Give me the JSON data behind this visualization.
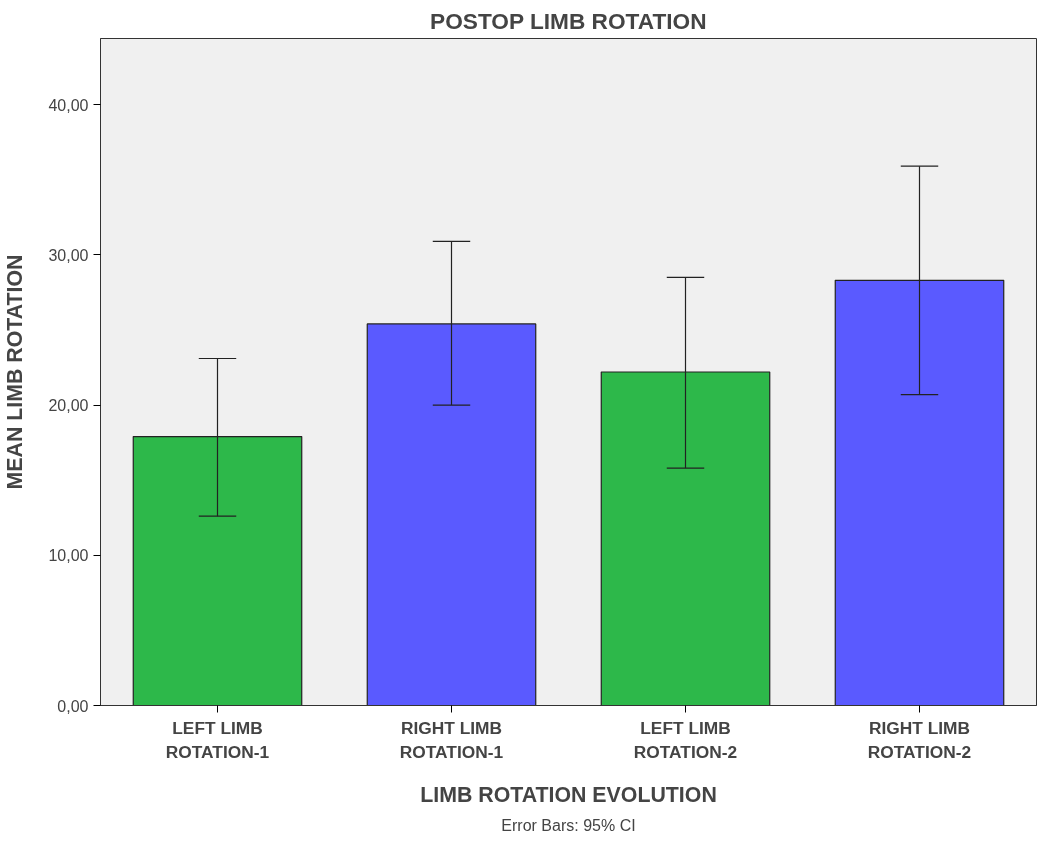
{
  "chart_data": {
    "type": "bar",
    "title": "POSTOP LIMB ROTATION",
    "xlabel": "LIMB ROTATION EVOLUTION",
    "ylabel": "MEAN LIMB ROTATION",
    "categories": [
      "LEFT LIMB\nROTATION-1",
      "RIGHT LIMB\nROTATION-1",
      "LEFT LIMB\nROTATION-2",
      "RIGHT LIMB\nROTATION-2"
    ],
    "values": [
      17.9,
      25.4,
      22.2,
      28.3
    ],
    "colors": [
      "#2db84a",
      "#5a5aff",
      "#2db84a",
      "#5a5aff"
    ],
    "errors": [
      [
        12.6,
        23.1
      ],
      [
        20.0,
        30.9
      ],
      [
        15.8,
        28.5
      ],
      [
        20.7,
        35.9
      ]
    ],
    "ylim": [
      0,
      44.4
    ],
    "yticks": [
      {
        "value": 0,
        "label": "0,00"
      },
      {
        "value": 10,
        "label": "10,00"
      },
      {
        "value": 20,
        "label": "20,00"
      },
      {
        "value": 30,
        "label": "30,00"
      },
      {
        "value": 40,
        "label": "40,00"
      }
    ],
    "grid": false,
    "annotations": [
      "Error Bars: 95% CI"
    ]
  }
}
